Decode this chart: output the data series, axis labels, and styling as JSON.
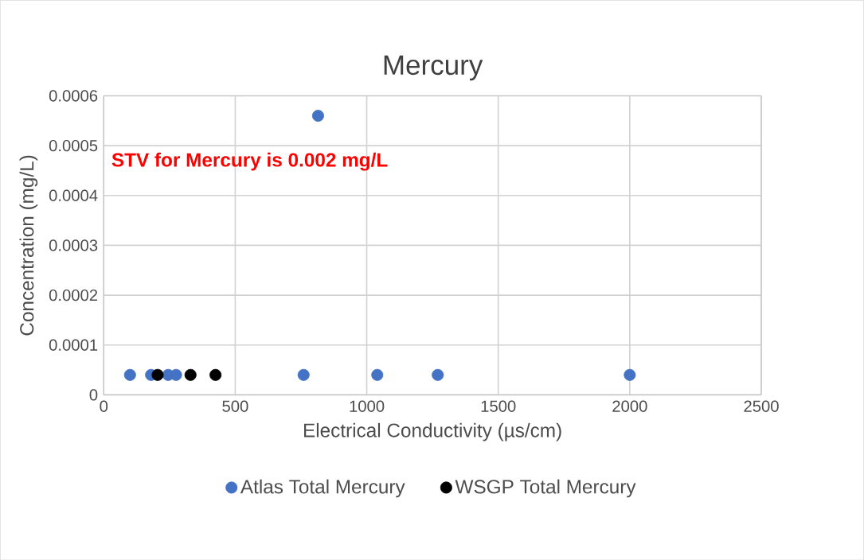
{
  "chart_data": {
    "type": "scatter",
    "title": "Mercury",
    "xlabel": "Electrical Conductivity (µs/cm)",
    "ylabel": "Concentration (mg/L)",
    "annotations": [
      "STV for Mercury is 0.002 mg/L"
    ],
    "xlim": [
      0,
      2500
    ],
    "xticks": [
      0,
      500,
      1000,
      1500,
      2000,
      2500
    ],
    "ylim": [
      0,
      0.0006
    ],
    "yticks": [
      0,
      0.0001,
      0.0002,
      0.0003,
      0.0004,
      0.0005,
      0.0006
    ],
    "grid": true,
    "legend": "bottom",
    "marker": "circle",
    "series": [
      {
        "name": "Atlas Total Mercury",
        "color": "#4472c4",
        "x": [
          100,
          180,
          245,
          275,
          760,
          815,
          1040,
          1270,
          2000
        ],
        "values": [
          4e-05,
          4e-05,
          4e-05,
          4e-05,
          4e-05,
          0.00056,
          4e-05,
          4e-05,
          4e-05
        ]
      },
      {
        "name": "WSGP Total Mercury",
        "color": "#000000",
        "x": [
          205,
          330,
          425
        ],
        "values": [
          4e-05,
          4e-05,
          4e-05
        ]
      }
    ]
  }
}
